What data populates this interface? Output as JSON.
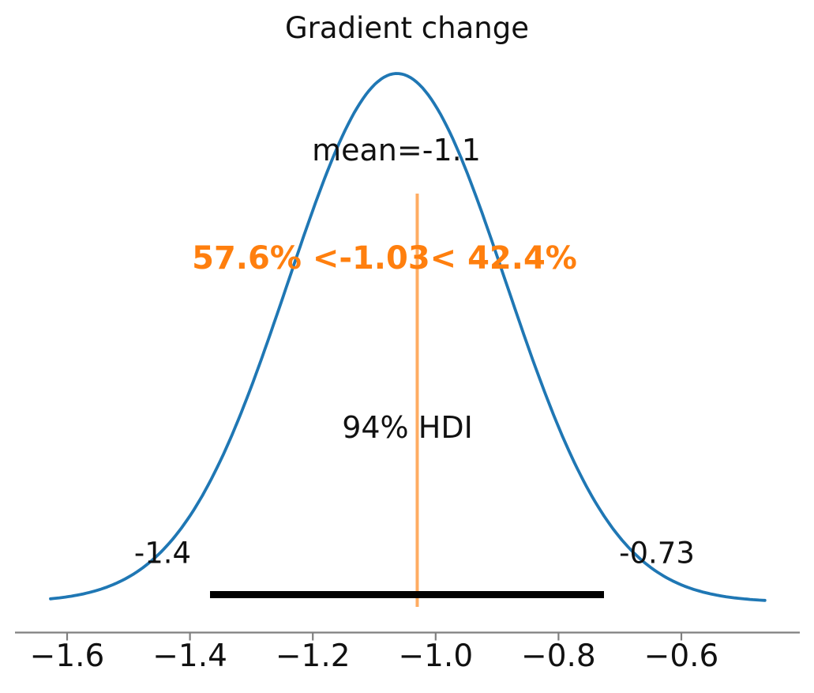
{
  "title": "Gradient change",
  "annotations": {
    "mean_label": "mean=-1.1",
    "ref_label": "57.6% <-1.03< 42.4%",
    "hdi_label": "94% HDI",
    "hdi_lower_label": "-1.4",
    "hdi_upper_label": "-0.73"
  },
  "colors": {
    "curve": "#1f77b4",
    "ref_line": "#ff7f0e",
    "ref_text": "#ff7f0e",
    "hdi_bar": "#000000",
    "axis": "#7f7f7f",
    "text": "#111111"
  },
  "chart_data": {
    "type": "line",
    "kind": "posterior-kde",
    "title": "Gradient change",
    "mean": -1.1,
    "ref_value": -1.03,
    "pct_below_ref": 57.6,
    "pct_above_ref": 42.4,
    "hdi_prob_pct": 94,
    "hdi_lower": -1.4,
    "hdi_upper": -0.73,
    "x_ticks": [
      -1.6,
      -1.4,
      -1.2,
      -1.0,
      -0.8,
      -0.6
    ],
    "x_tick_labels": [
      "−1.6",
      "−1.4",
      "−1.2",
      "−1.0",
      "−0.8",
      "−0.6"
    ],
    "xlim": [
      -1.69,
      -0.41
    ],
    "legend": "none",
    "grid": false,
    "curve": {
      "shape": "gaussian",
      "peak_x": -1.063,
      "sigma": 0.177,
      "x_start": -1.627,
      "x_end": -0.464,
      "peak_density_rel": 1.0
    }
  }
}
